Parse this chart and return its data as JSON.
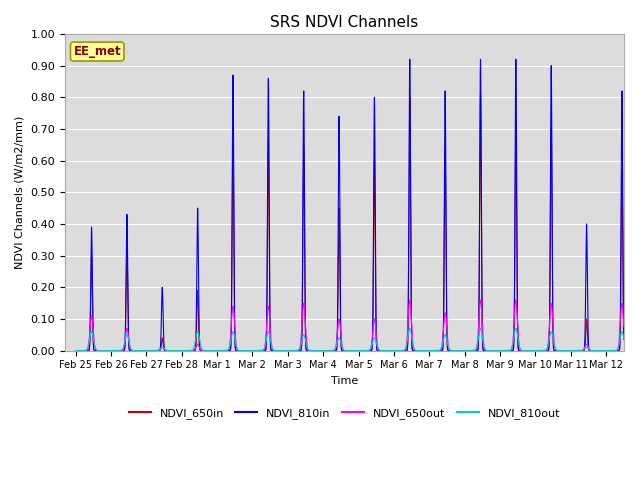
{
  "title": "SRS NDVI Channels",
  "ylabel": "NDVI Channels (W/m2/mm)",
  "xlabel": "Time",
  "ylim": [
    0.0,
    1.0
  ],
  "yticks": [
    0.0,
    0.1,
    0.2,
    0.3,
    0.4,
    0.5,
    0.6,
    0.7,
    0.8,
    0.9,
    1.0
  ],
  "annotation": "EE_met",
  "colors": {
    "NDVI_650in": "#cc0000",
    "NDVI_810in": "#0000ee",
    "NDVI_650out": "#ff00ff",
    "NDVI_810out": "#00cccc"
  },
  "background_color": "#dcdcdc",
  "xtick_labels": [
    "Feb 25",
    "Feb 26",
    "Feb 27",
    "Feb 28",
    "Mar 1",
    "Mar 2",
    "Mar 3",
    "Mar 4",
    "Mar 5",
    "Mar 6",
    "Mar 7",
    "Mar 8",
    "Mar 9",
    "Mar 10",
    "Mar 11",
    "Mar 12"
  ],
  "peak_810in": [
    0.39,
    0.43,
    0.2,
    0.45,
    0.87,
    0.86,
    0.82,
    0.74,
    0.8,
    0.92,
    0.82,
    0.92,
    0.92,
    0.9,
    0.4,
    0.82
  ],
  "peak_650in": [
    0.3,
    0.33,
    0.04,
    0.19,
    0.67,
    0.67,
    0.63,
    0.45,
    0.6,
    0.8,
    0.63,
    0.81,
    0.71,
    0.7,
    0.1,
    0.57
  ],
  "peak_650out": [
    0.11,
    0.07,
    0.01,
    0.02,
    0.14,
    0.14,
    0.15,
    0.1,
    0.1,
    0.16,
    0.12,
    0.16,
    0.16,
    0.15,
    0.02,
    0.15
  ],
  "peak_810out": [
    0.06,
    0.05,
    0.01,
    0.06,
    0.06,
    0.06,
    0.05,
    0.04,
    0.04,
    0.07,
    0.05,
    0.07,
    0.07,
    0.06,
    0.01,
    0.06
  ]
}
